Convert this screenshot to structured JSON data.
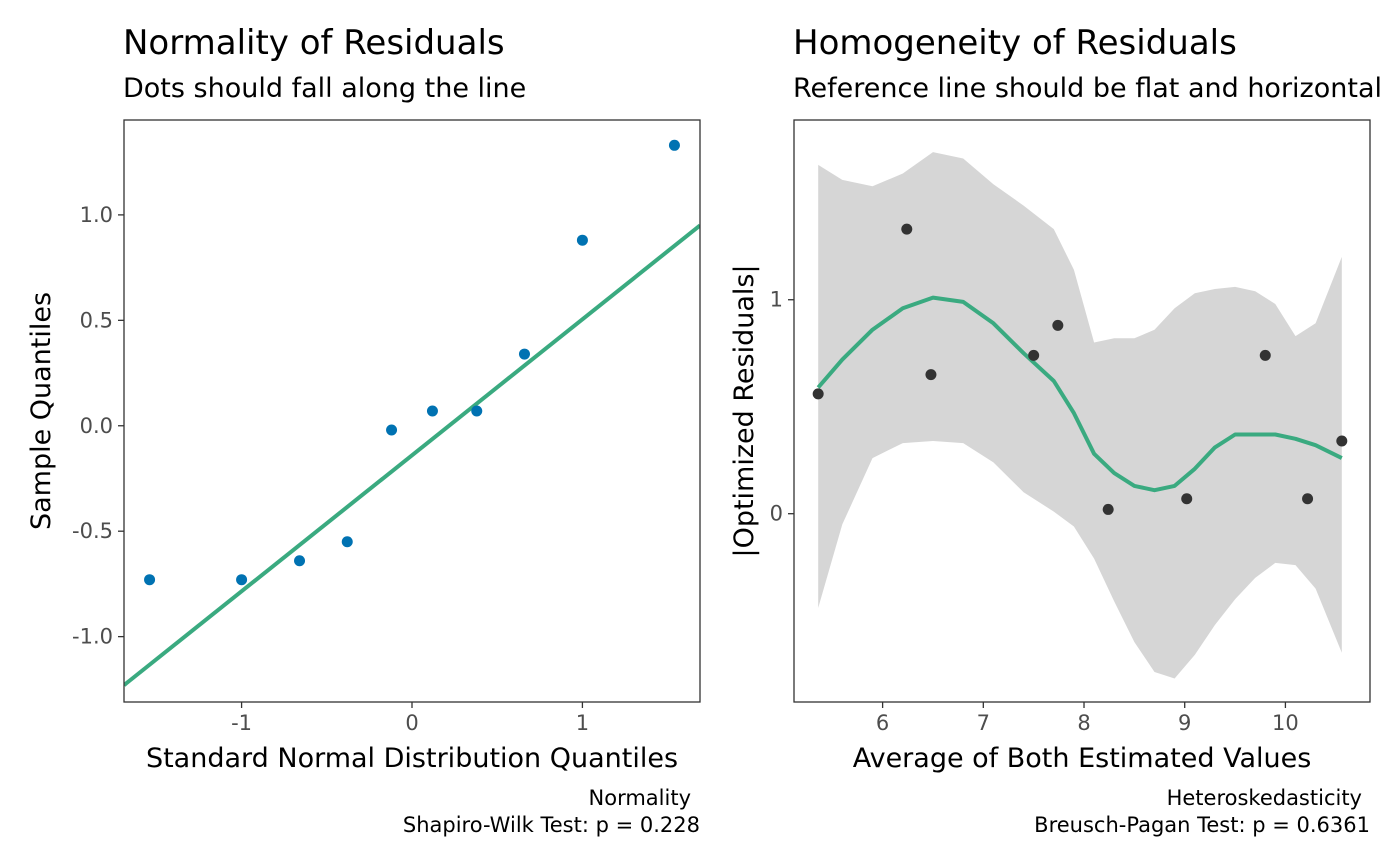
{
  "chart_data": [
    {
      "type": "scatter",
      "title": "Normality of Residuals",
      "subtitle": "Dots should fall along the line",
      "xlabel": "Standard Normal Distribution Quantiles",
      "ylabel": "Sample Quantiles",
      "caption_line1": "Normality",
      "caption_line2": "Shapiro-Wilk Test: p = 0.228",
      "xlim": [
        -1.69,
        1.69
      ],
      "ylim": [
        -1.31,
        1.45
      ],
      "x_ticks": [
        -1,
        0,
        1
      ],
      "x_tick_labels": [
        "-1",
        "0",
        "1"
      ],
      "y_ticks": [
        1.0,
        0.5,
        0.0,
        -0.5,
        -1.0
      ],
      "y_tick_labels": [
        "1.0",
        "0.5",
        "0.0",
        "-0.5",
        "-1.0"
      ],
      "grid": false,
      "point_color": "#0072B2",
      "line_color": "#3AAA80",
      "points": [
        {
          "x": -1.54,
          "y": -0.73
        },
        {
          "x": -1.0,
          "y": -0.73
        },
        {
          "x": -0.66,
          "y": -0.64
        },
        {
          "x": -0.38,
          "y": -0.55
        },
        {
          "x": -0.12,
          "y": -0.02
        },
        {
          "x": 0.12,
          "y": 0.07
        },
        {
          "x": 0.38,
          "y": 0.07
        },
        {
          "x": 0.66,
          "y": 0.34
        },
        {
          "x": 1.0,
          "y": 0.88
        },
        {
          "x": 1.54,
          "y": 1.33
        }
      ],
      "reference_line": {
        "intercept": -0.14,
        "slope": 0.645
      }
    },
    {
      "type": "scatter",
      "title": "Homogeneity of Residuals",
      "subtitle": "Reference line should be flat and horizontal",
      "xlabel": "Average of Both Estimated Values",
      "ylabel": "|Optimized Residuals|",
      "caption_line1": "Heteroskedasticity",
      "caption_line2": "Breusch-Pagan Test: p = 0.6361",
      "xlim": [
        5.12,
        10.84
      ],
      "ylim": [
        -0.88,
        1.84
      ],
      "x_ticks": [
        6,
        7,
        8,
        9,
        10
      ],
      "x_tick_labels": [
        "6",
        "7",
        "8",
        "9",
        "10"
      ],
      "y_ticks": [
        1,
        0
      ],
      "y_tick_labels": [
        "1",
        "0"
      ],
      "grid": false,
      "point_color": "#333333",
      "line_color": "#3AAA80",
      "band_color": "#D6D6D6",
      "points": [
        {
          "x": 5.36,
          "y": 0.56
        },
        {
          "x": 6.24,
          "y": 1.33
        },
        {
          "x": 6.48,
          "y": 0.65
        },
        {
          "x": 7.5,
          "y": 0.74
        },
        {
          "x": 7.74,
          "y": 0.88
        },
        {
          "x": 8.24,
          "y": 0.02
        },
        {
          "x": 9.02,
          "y": 0.07
        },
        {
          "x": 9.8,
          "y": 0.74
        },
        {
          "x": 10.22,
          "y": 0.07
        },
        {
          "x": 10.56,
          "y": 0.34
        }
      ],
      "smooth": {
        "x": [
          5.36,
          5.6,
          5.9,
          6.2,
          6.5,
          6.8,
          7.1,
          7.4,
          7.7,
          7.9,
          8.1,
          8.3,
          8.5,
          8.7,
          8.9,
          9.1,
          9.3,
          9.5,
          9.7,
          9.9,
          10.1,
          10.3,
          10.56
        ],
        "y": [
          0.59,
          0.72,
          0.86,
          0.96,
          1.01,
          0.99,
          0.89,
          0.75,
          0.62,
          0.47,
          0.28,
          0.19,
          0.13,
          0.11,
          0.13,
          0.21,
          0.31,
          0.37,
          0.37,
          0.37,
          0.35,
          0.32,
          0.26
        ],
        "lower": [
          -0.44,
          -0.05,
          0.26,
          0.33,
          0.34,
          0.33,
          0.24,
          0.1,
          0.01,
          -0.06,
          -0.21,
          -0.41,
          -0.6,
          -0.74,
          -0.77,
          -0.66,
          -0.52,
          -0.4,
          -0.3,
          -0.23,
          -0.24,
          -0.35,
          -0.65
        ],
        "upper": [
          1.63,
          1.56,
          1.53,
          1.59,
          1.69,
          1.66,
          1.54,
          1.44,
          1.33,
          1.14,
          0.8,
          0.82,
          0.82,
          0.86,
          0.96,
          1.03,
          1.05,
          1.06,
          1.04,
          0.98,
          0.83,
          0.89,
          1.2
        ]
      }
    }
  ]
}
